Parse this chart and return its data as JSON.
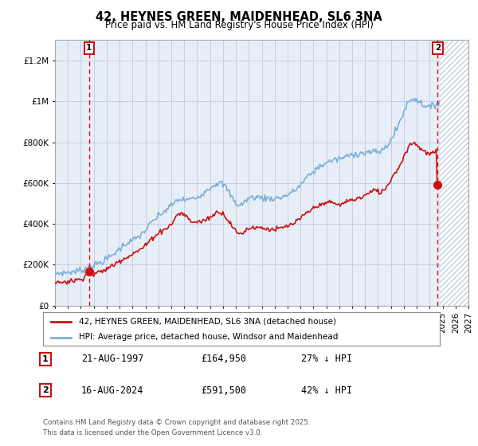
{
  "title": "42, HEYNES GREEN, MAIDENHEAD, SL6 3NA",
  "subtitle": "Price paid vs. HM Land Registry's House Price Index (HPI)",
  "ylim": [
    0,
    1300000
  ],
  "yticks": [
    0,
    200000,
    400000,
    600000,
    800000,
    1000000,
    1200000
  ],
  "ytick_labels": [
    "£0",
    "£200K",
    "£400K",
    "£600K",
    "£800K",
    "£1M",
    "£1.2M"
  ],
  "xlim_start": 1995.0,
  "xlim_end": 2027.0,
  "bg_color": "#ffffff",
  "plot_bg_color": "#e8eef8",
  "grid_color": "#c5cfe0",
  "hpi_color": "#7ab0d8",
  "price_color": "#cc1111",
  "marker_color": "#cc1111",
  "hatch_color": "#c8d4e8",
  "hatch_start": 2024.75,
  "sale1_year": 1997.64,
  "sale1_price": 164950,
  "sale1_label": "1",
  "sale2_year": 2024.62,
  "sale2_price": 591500,
  "sale2_label": "2",
  "legend_price_label": "42, HEYNES GREEN, MAIDENHEAD, SL6 3NA (detached house)",
  "legend_hpi_label": "HPI: Average price, detached house, Windsor and Maidenhead",
  "footer_line1": "Contains HM Land Registry data © Crown copyright and database right 2025.",
  "footer_line2": "This data is licensed under the Open Government Licence v3.0.",
  "table_rows": [
    {
      "num": "1",
      "date": "21-AUG-1997",
      "price": "£164,950",
      "note": "27% ↓ HPI"
    },
    {
      "num": "2",
      "date": "16-AUG-2024",
      "price": "£591,500",
      "note": "42% ↓ HPI"
    }
  ]
}
